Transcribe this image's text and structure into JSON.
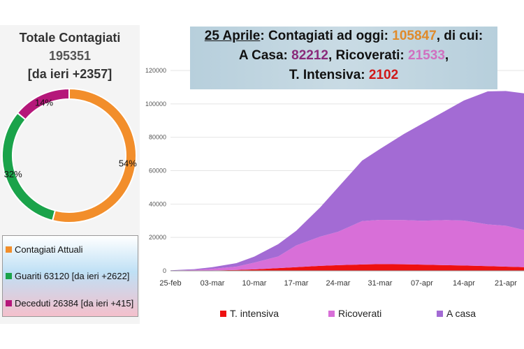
{
  "summary": {
    "title": "Totale Contagiati",
    "total": "195351",
    "delta": "[da ieri +2357]"
  },
  "donut": {
    "slices": [
      {
        "name": "Contagiati Attuali",
        "pct": 54,
        "label": "54%",
        "color": "#f28e2b"
      },
      {
        "name": "Guariti",
        "pct": 32,
        "label": "32%",
        "color": "#1aa34a"
      },
      {
        "name": "Deceduti",
        "pct": 14,
        "label": "14%",
        "color": "#b5177a"
      }
    ]
  },
  "legend": [
    "Contagiati Attuali",
    "Guariti 63120 [da ieri +2622]",
    "Deceduti 26384 [da ieri +415]"
  ],
  "banner": {
    "date": "25 Aprile",
    "l1a": ": Contagiati ad oggi: ",
    "total": "105847",
    "l1b": ", di cui:",
    "l2a": "A Casa: ",
    "casa": "82212",
    "l2b": ", Ricoverati: ",
    "ricoverati": "21533",
    "l2c": ",",
    "l3a": "T. Intensiva: ",
    "intensiva": "2102"
  },
  "chart_data": {
    "type": "area",
    "stacked": true,
    "x_days": [
      0,
      4,
      7,
      11,
      14,
      18,
      21,
      25,
      28,
      32,
      35,
      39,
      42,
      46,
      49,
      53,
      56,
      60
    ],
    "xticks": [
      "25-feb",
      "03-mar",
      "10-mar",
      "17-mar",
      "24-mar",
      "31-mar",
      "07-apr",
      "14-apr",
      "21-apr"
    ],
    "yticks": [
      "0",
      "20000",
      "40000",
      "60000",
      "80000",
      "100000",
      "120000"
    ],
    "ylim": [
      0,
      120000
    ],
    "series": [
      {
        "name": "T. intensiva",
        "color": "#ee1111",
        "values": [
          30,
          100,
          200,
          500,
          900,
          1600,
          2200,
          3000,
          3400,
          3800,
          4000,
          3900,
          3700,
          3400,
          3200,
          2800,
          2500,
          2102
        ]
      },
      {
        "name": "Ricoverati",
        "color": "#d86fd8",
        "values": [
          100,
          400,
          1000,
          2000,
          4000,
          7000,
          13000,
          17500,
          20000,
          26000,
          26500,
          26500,
          26300,
          27000,
          26900,
          25000,
          24500,
          21533
        ]
      },
      {
        "name": "A casa",
        "color": "#a36bd4",
        "values": [
          170,
          500,
          1000,
          2100,
          3600,
          7400,
          8800,
          17500,
          26600,
          36200,
          42500,
          51600,
          58000,
          65600,
          71900,
          79700,
          80700,
          82212
        ]
      }
    ],
    "legend_position": "bottom"
  }
}
